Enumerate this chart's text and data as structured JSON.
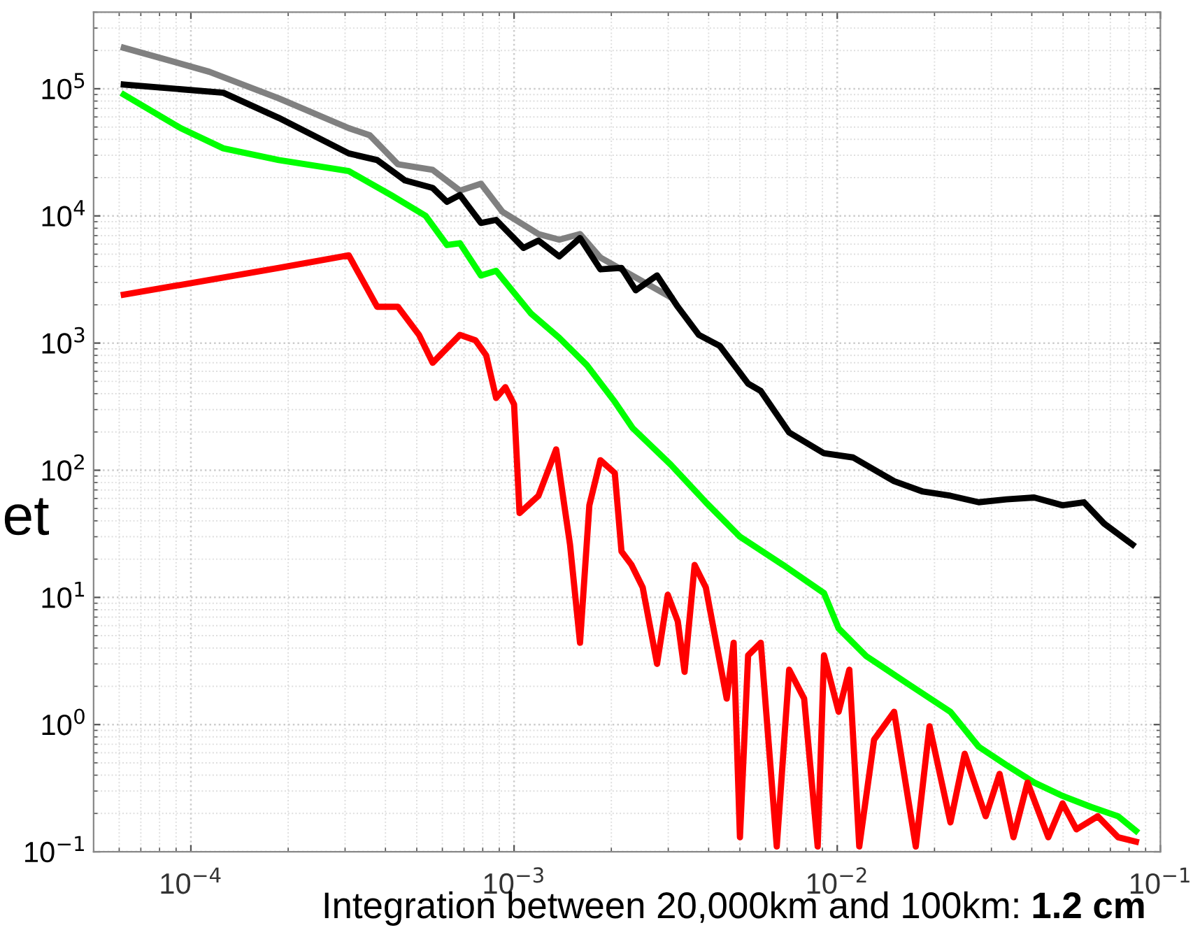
{
  "chart_data": {
    "type": "line",
    "log": "xy",
    "xlim": [
      5e-05,
      0.1
    ],
    "ylim": [
      0.1,
      400000
    ],
    "xticks": [
      {
        "value": 0.0001,
        "label": "10$^{−4}$"
      },
      {
        "value": 0.001,
        "label": "10$^{−3}$"
      },
      {
        "value": 0.01,
        "label": "10$^{−2}$"
      },
      {
        "value": 0.1,
        "label": "10$^{−1}$"
      }
    ],
    "yticks": [
      {
        "value": 0.1,
        "label": "10$^{−1}$"
      },
      {
        "value": 1,
        "label": "10$^{0}$"
      },
      {
        "value": 10,
        "label": "10$^{1}$"
      },
      {
        "value": 100,
        "label": "10$^{2}$"
      },
      {
        "value": 1000,
        "label": "10$^{3}$"
      },
      {
        "value": 10000,
        "label": "10$^{4}$"
      },
      {
        "value": 100000,
        "label": "10$^{5}$"
      }
    ],
    "grid": true,
    "legend": false,
    "marker": "none",
    "line_style": "solid",
    "series": [
      {
        "color": "#808080",
        "x": [
          6.2e-05,
          0.000114,
          0.000187,
          0.000308,
          0.000358,
          0.000437,
          0.00056,
          0.00068,
          0.00079,
          0.00092,
          0.00119,
          0.00138,
          0.0016,
          0.00185,
          0.00305
        ],
        "values": [
          210000,
          136000,
          84000,
          49000,
          43000,
          25500,
          23000,
          15800,
          17900,
          10800,
          7200,
          6500,
          7200,
          4700,
          2300
        ]
      },
      {
        "color": "#000000",
        "x": [
          6.2e-05,
          0.000126,
          0.000187,
          0.000308,
          0.000377,
          0.00046,
          0.00056,
          0.00062,
          0.00068,
          0.00079,
          0.00088,
          0.00107,
          0.00119,
          0.00138,
          0.0016,
          0.00185,
          0.00215,
          0.00238,
          0.00277,
          0.00321,
          0.00373,
          0.00433,
          0.0053,
          0.0058,
          0.0071,
          0.0091,
          0.0112,
          0.015,
          0.0184,
          0.0224,
          0.0274,
          0.0334,
          0.0407,
          0.0498,
          0.058,
          0.067,
          0.082
        ],
        "values": [
          108000,
          93000,
          59000,
          31000,
          27500,
          19000,
          16600,
          12900,
          14600,
          8800,
          9300,
          5600,
          6400,
          4800,
          6700,
          3800,
          3900,
          2600,
          3400,
          1930,
          1160,
          950,
          480,
          420,
          198,
          136,
          126,
          82,
          68,
          63,
          56,
          59,
          61,
          53,
          56,
          38,
          26
        ]
      },
      {
        "color": "#00ff00",
        "x": [
          6.2e-05,
          9.3e-05,
          0.000126,
          0.000187,
          0.000308,
          0.000416,
          0.000533,
          0.00062,
          0.00068,
          0.00079,
          0.00088,
          0.00113,
          0.00138,
          0.00168,
          0.00205,
          0.00233,
          0.00305,
          0.00392,
          0.005,
          0.0068,
          0.0091,
          0.0101,
          0.0123,
          0.0166,
          0.0224,
          0.0274,
          0.0334,
          0.0407,
          0.0498,
          0.061,
          0.074,
          0.084
        ],
        "values": [
          90000,
          49000,
          34000,
          27500,
          22500,
          14600,
          10000,
          5900,
          6100,
          3400,
          3700,
          1700,
          1100,
          670,
          345,
          214,
          111,
          56,
          30,
          18,
          10.8,
          5.7,
          3.45,
          2.08,
          1.26,
          0.67,
          0.48,
          0.35,
          0.275,
          0.225,
          0.19,
          0.146
        ]
      },
      {
        "color": "#ff0000",
        "x": [
          6.2e-05,
          0.000187,
          0.000308,
          0.000377,
          0.000437,
          0.000508,
          0.00056,
          0.00068,
          0.00076,
          0.00082,
          0.00088,
          0.00094,
          0.001,
          0.00104,
          0.00119,
          0.00135,
          0.00149,
          0.0016,
          0.00171,
          0.00185,
          0.00205,
          0.00215,
          0.00231,
          0.0025,
          0.00277,
          0.00299,
          0.00321,
          0.00337,
          0.00362,
          0.00392,
          0.00455,
          0.00478,
          0.005,
          0.0053,
          0.0058,
          0.0065,
          0.0071,
          0.0079,
          0.0087,
          0.0091,
          0.0101,
          0.0109,
          0.0117,
          0.013,
          0.015,
          0.0175,
          0.0193,
          0.0224,
          0.0248,
          0.0288,
          0.0318,
          0.0351,
          0.0388,
          0.045,
          0.0498,
          0.055,
          0.064,
          0.074,
          0.084
        ],
        "values": [
          2400,
          3900,
          4900,
          1930,
          1930,
          1160,
          700,
          1160,
          1050,
          800,
          370,
          450,
          330,
          46,
          63,
          146,
          26,
          4.4,
          53,
          120,
          95,
          23,
          18,
          12,
          3.0,
          10.5,
          6.5,
          2.6,
          18,
          12,
          1.6,
          4.4,
          0.13,
          3.5,
          4.4,
          0.11,
          2.7,
          1.6,
          0.11,
          3.5,
          1.26,
          2.7,
          0.11,
          0.76,
          1.26,
          0.11,
          0.97,
          0.17,
          0.59,
          0.19,
          0.41,
          0.13,
          0.35,
          0.13,
          0.24,
          0.15,
          0.19,
          0.13,
          0.12
        ]
      }
    ],
    "annotations": [
      "et",
      "Integration between 20,000km and 100km:",
      "1.2 cm"
    ]
  }
}
